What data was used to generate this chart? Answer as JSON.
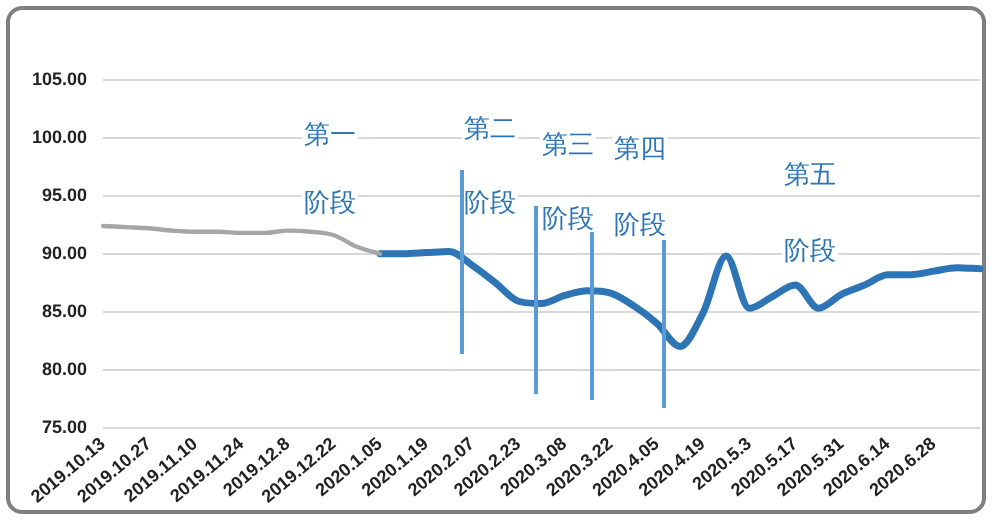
{
  "chart_data": {
    "type": "line",
    "categories": [
      "2019.10.13",
      null,
      "2019.10.27",
      null,
      "2019.11.10",
      null,
      "2019.11.24",
      null,
      "2019.12.8",
      null,
      "2019.12.22",
      null,
      "2020.1.05",
      null,
      "2020.1.19",
      null,
      "2020.2.07",
      null,
      "2020.2.23",
      null,
      "2020.3.08",
      null,
      "2020.3.22",
      null,
      "2020.4.05",
      null,
      "2020.4.19",
      null,
      "2020.5.3",
      null,
      "2020.5.17",
      null,
      "2020.5.31",
      null,
      "2020.6.14",
      null,
      "2020.6.28",
      null,
      null
    ],
    "ylim": [
      75,
      105
    ],
    "yticks": [
      {
        "value": 75,
        "label": "75.00"
      },
      {
        "value": 80,
        "label": "80.00"
      },
      {
        "value": 85,
        "label": "85.00"
      },
      {
        "value": 90,
        "label": "90.00"
      },
      {
        "value": 95,
        "label": "95.00"
      },
      {
        "value": 100,
        "label": "100.00"
      },
      {
        "value": 105,
        "label": "105.00"
      }
    ],
    "series": [
      {
        "color": "#a6a6a6",
        "values": [
          92.4,
          92.3,
          92.2,
          92.0,
          91.9,
          91.9,
          91.8,
          91.8,
          92.0,
          91.9,
          91.6,
          90.6,
          90.0,
          null,
          null,
          null,
          null,
          null,
          null,
          null,
          null,
          null,
          null,
          null,
          null,
          null,
          null,
          null,
          null,
          null,
          null,
          null,
          null,
          null,
          null,
          null,
          null,
          null,
          null
        ]
      },
      {
        "color": "#2e75b6",
        "values": [
          null,
          null,
          null,
          null,
          null,
          null,
          null,
          null,
          null,
          null,
          null,
          null,
          90.0,
          90.0,
          90.1,
          90.2,
          89.0,
          87.5,
          85.9,
          85.7,
          86.4,
          86.8,
          86.6,
          85.5,
          84.0,
          82.0,
          84.9,
          89.8,
          85.3,
          86.3,
          87.3,
          85.3,
          86.5,
          87.3,
          88.2,
          88.2,
          88.5,
          88.8,
          88.7
        ]
      }
    ],
    "annotations": [
      "第一",
      "阶段",
      "第二",
      "阶段",
      "第三",
      "阶段",
      "第四",
      "阶段",
      "第五",
      "阶段"
    ],
    "grid": "y",
    "legend": false,
    "marker": "none"
  }
}
